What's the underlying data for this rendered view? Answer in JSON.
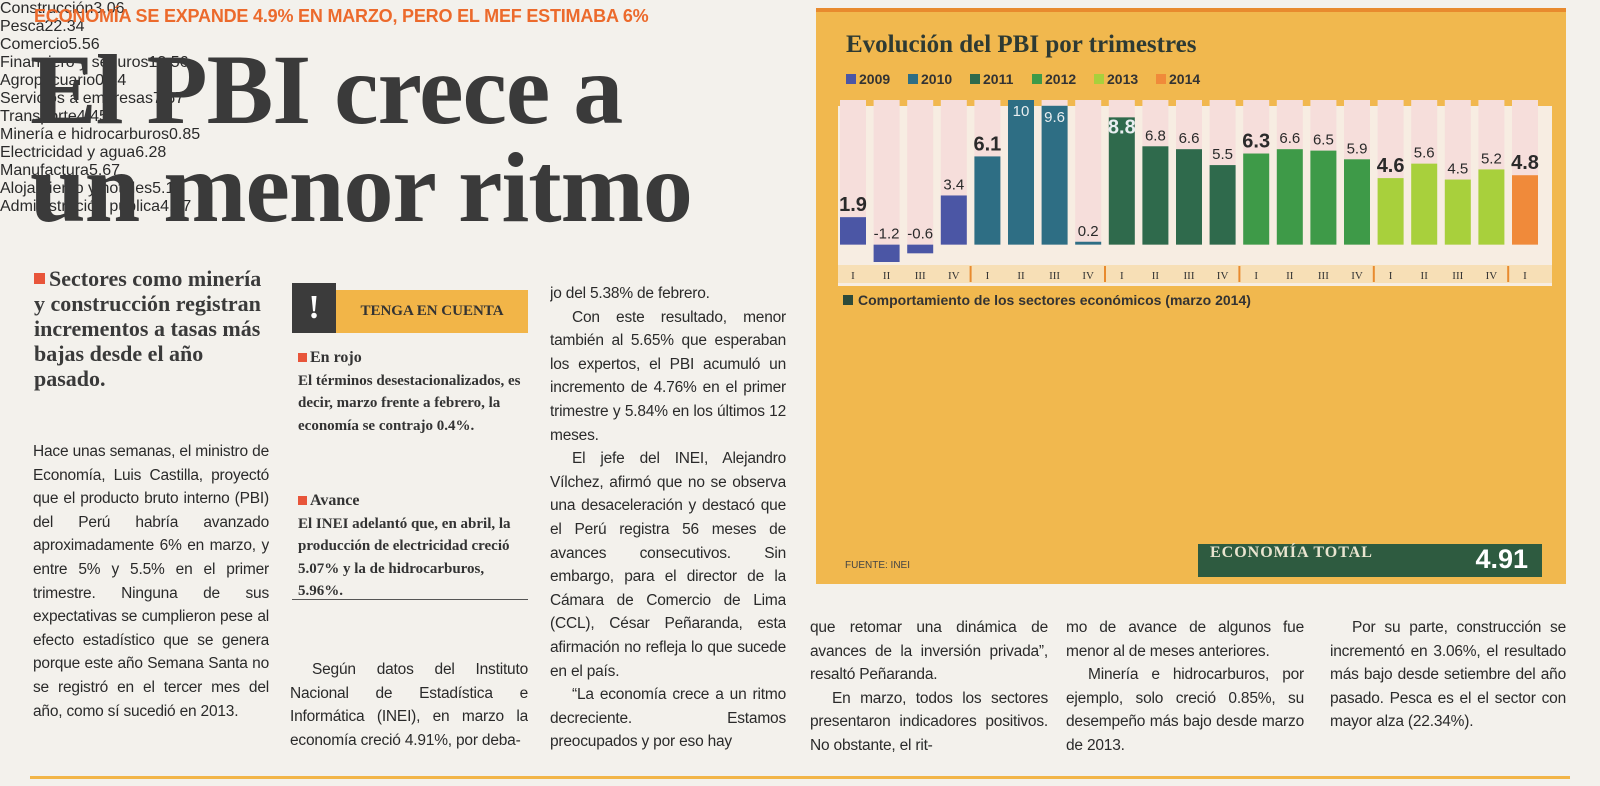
{
  "kicker": "ECONOMÍA SE EXPANDE 4.9% EN MARZO, PERO EL MEF ESTIMABA 6%",
  "headline": [
    "El PBI crece a",
    "un menor ritmo"
  ],
  "deck": "Sectores como minería y construcción registran incrementos a tasas más bajas desde el año pasado.",
  "box": {
    "title": "TENGA EN CUENTA",
    "items": [
      {
        "heading": "En rojo",
        "text": "El términos desestacionalizados, es decir, marzo frente a febrero, la economía se contrajo 0.4%."
      },
      {
        "heading": "Avance",
        "text": "El INEI adelantó que, en abril, la producción de electricidad creció 5.07% y la de hidrocarburos, 5.96%."
      }
    ]
  },
  "columns": [
    [
      "Hace unas semanas, el ministro de Economía, Luis Castilla, proyectó que el producto bruto interno (PBI) del Perú habría avanzado aproximadamente 6% en marzo, y entre 5% y 5.5% en el primer trimestre. Ninguna de sus expectativas se cumplieron pese al efecto estadístico que se genera porque este año Semana Santa no se registró en el tercer mes del año, como sí sucedió en 2013."
    ],
    [
      "Según datos del Instituto Nacional de Estadística e Informática (INEI), en marzo la economía creció 4.91%, por deba-"
    ],
    [
      "jo del 5.38% de febrero.",
      "Con este resultado, menor también al 5.65% que esperaban los expertos, el PBI acumuló un incremento de 4.76% en el primer trimestre y 5.84% en los últimos 12 meses.",
      "El jefe del INEI, Alejandro Vílchez, afirmó que no se observa una desaceleración y destacó que el Perú registra 56 meses de avances consecutivos. Sin embargo, para el director de la Cámara de Comercio de Lima (CCL), César Peñaranda, esta afirmación no refleja lo que sucede en el país.",
      "“La economía crece a un ritmo decreciente. Estamos preocupados y por eso hay"
    ],
    [
      "que retomar una dinámica de avances de la inversión privada”, resaltó Peñaranda.",
      "En marzo, todos los sectores presentaron indicadores positivos. No obstante, el rit-"
    ],
    [
      "mo de avance de algunos fue menor al de meses anteriores.",
      "Minería e hidrocarburos, por ejemplo, solo creció 0.85%, su desempeño más bajo desde marzo de 2013."
    ],
    [
      "Por su parte, construcción se incrementó en 3.06%, el resultado más bajo desde setiembre del año pasado. Pesca es el el sector con mayor alza (22.34%)."
    ]
  ],
  "chart_data": {
    "type": "bar",
    "title": "Evolución del PBI por trimestres",
    "ylim": [
      -1.2,
      10
    ],
    "series": [
      {
        "name": "2009",
        "color": "#4b56a5",
        "categories": [
          "I",
          "II",
          "III",
          "IV"
        ],
        "values": [
          1.9,
          -1.2,
          -0.6,
          3.4
        ]
      },
      {
        "name": "2010",
        "color": "#2e6e84",
        "categories": [
          "I",
          "II",
          "III",
          "IV"
        ],
        "values": [
          6.1,
          10,
          9.6,
          0.2
        ]
      },
      {
        "name": "2011",
        "color": "#2f6a4c",
        "categories": [
          "I",
          "II",
          "III",
          "IV"
        ],
        "values": [
          8.8,
          6.8,
          6.6,
          5.5
        ]
      },
      {
        "name": "2012",
        "color": "#3e9a48",
        "categories": [
          "I",
          "II",
          "III",
          "IV"
        ],
        "values": [
          6.3,
          6.6,
          6.5,
          5.9
        ]
      },
      {
        "name": "2013",
        "color": "#a8d03c",
        "categories": [
          "I",
          "II",
          "III",
          "IV"
        ],
        "values": [
          4.6,
          5.6,
          4.5,
          5.2
        ]
      },
      {
        "name": "2014",
        "color": "#f08a3a",
        "categories": [
          "I"
        ],
        "values": [
          4.8
        ]
      }
    ]
  },
  "sectors": {
    "title": "Comportamiento de los sectores económicos (marzo 2014)",
    "left": [
      {
        "name": "Construcción",
        "value": 3.06
      },
      {
        "name": "Pesca",
        "value": 22.34
      },
      {
        "name": "Comercio",
        "value": 5.56
      },
      {
        "name": "Financiero y seguros",
        "value": 13.56
      },
      {
        "name": "Agropecuario",
        "value": 0.24
      },
      {
        "name": "Servicios a empresas",
        "value": 7.67
      }
    ],
    "right": [
      {
        "name": "Transporte",
        "value": 4.45
      },
      {
        "name": "Minería e hidrocarburos",
        "value": 0.85
      },
      {
        "name": "Electricidad y agua",
        "value": 6.28
      },
      {
        "name": "Manufactura",
        "value": 5.67
      },
      {
        "name": "Alojamiento y hoteles",
        "value": 5.12
      },
      {
        "name": "Administración pública",
        "value": 4.67
      }
    ],
    "total": {
      "label": "ECONOMÍA TOTAL",
      "value": 4.91
    }
  },
  "source": "FUENTE: INEI"
}
